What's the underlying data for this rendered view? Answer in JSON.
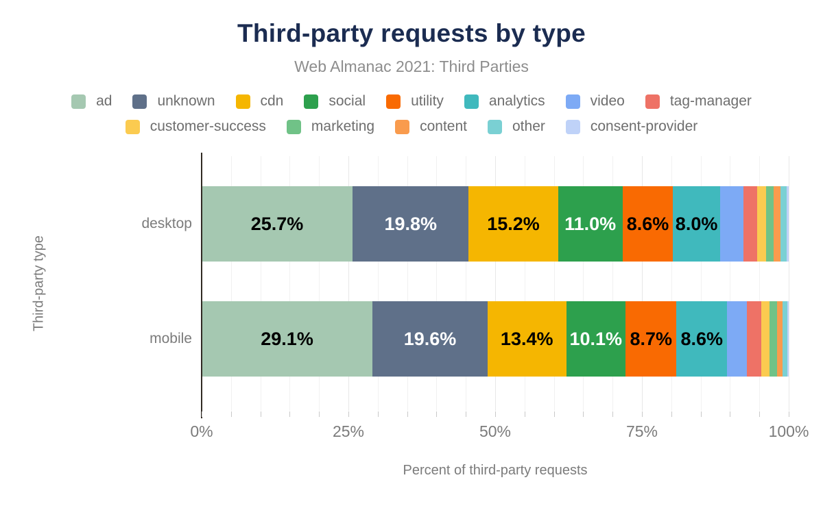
{
  "title": "Third-party requests by type",
  "subtitle": "Web Almanac 2021: Third Parties",
  "colors": {
    "title": "#1b2c51",
    "muted_text": "#7b7b7b",
    "axis_line": "#302a23",
    "gridline": "#f1f1f1"
  },
  "legend": {
    "rows": [
      [
        {
          "label": "ad",
          "color": "#a5c8b1"
        },
        {
          "label": "unknown",
          "color": "#5f7089"
        },
        {
          "label": "cdn",
          "color": "#f5b601"
        },
        {
          "label": "social",
          "color": "#2da04d"
        },
        {
          "label": "utility",
          "color": "#f96a02"
        },
        {
          "label": "analytics",
          "color": "#40b9bd"
        },
        {
          "label": "video",
          "color": "#7daaf5"
        },
        {
          "label": "tag-manager",
          "color": "#ee7266"
        }
      ],
      [
        {
          "label": "customer-success",
          "color": "#fbcb50"
        },
        {
          "label": "marketing",
          "color": "#70c287"
        },
        {
          "label": "content",
          "color": "#f99b4d"
        },
        {
          "label": "other",
          "color": "#7ad0d3"
        },
        {
          "label": "consent-provider",
          "color": "#bfd2f8"
        }
      ]
    ]
  },
  "chart_data": {
    "type": "bar",
    "orientation": "horizontal",
    "stacked": true,
    "title": "Third-party requests by type",
    "subtitle": "Web Almanac 2021: Third Parties",
    "xlabel": "Percent of third-party requests",
    "ylabel": "Third-party type",
    "xlim": [
      0,
      100
    ],
    "x_ticks": [
      "0%",
      "25%",
      "50%",
      "75%",
      "100%"
    ],
    "grid": "vertical-minor-5pct",
    "legend_position": "top",
    "data_label_threshold": 8,
    "categories": [
      "desktop",
      "mobile"
    ],
    "series": [
      {
        "name": "ad",
        "color": "#a5c8b1",
        "label_color": "#000000",
        "values": [
          25.7,
          29.1
        ]
      },
      {
        "name": "unknown",
        "color": "#5f7089",
        "label_color": "#ffffff",
        "values": [
          19.8,
          19.6
        ]
      },
      {
        "name": "cdn",
        "color": "#f5b601",
        "label_color": "#000000",
        "values": [
          15.2,
          13.4
        ]
      },
      {
        "name": "social",
        "color": "#2da04d",
        "label_color": "#ffffff",
        "values": [
          11.0,
          10.1
        ]
      },
      {
        "name": "utility",
        "color": "#f96a02",
        "label_color": "#000000",
        "values": [
          8.6,
          8.7
        ]
      },
      {
        "name": "analytics",
        "color": "#40b9bd",
        "label_color": "#000000",
        "values": [
          8.0,
          8.6
        ]
      },
      {
        "name": "video",
        "color": "#7daaf5",
        "label_color": "#000000",
        "values": [
          4.0,
          3.4
        ]
      },
      {
        "name": "tag-manager",
        "color": "#ee7266",
        "label_color": "#000000",
        "values": [
          2.3,
          2.4
        ]
      },
      {
        "name": "customer-success",
        "color": "#fbcb50",
        "label_color": "#000000",
        "values": [
          1.5,
          1.4
        ]
      },
      {
        "name": "marketing",
        "color": "#70c287",
        "label_color": "#000000",
        "values": [
          1.3,
          1.3
        ]
      },
      {
        "name": "content",
        "color": "#f99b4d",
        "label_color": "#000000",
        "values": [
          1.2,
          0.9
        ]
      },
      {
        "name": "other",
        "color": "#7ad0d3",
        "label_color": "#000000",
        "values": [
          1.1,
          0.9
        ]
      },
      {
        "name": "consent-provider",
        "color": "#bfd2f8",
        "label_color": "#000000",
        "values": [
          0.3,
          0.2
        ]
      }
    ],
    "shown_data_labels": {
      "desktop": [
        "25.7%",
        "19.8%",
        "15.2%",
        "11.0%",
        "8.6%",
        "8.0%"
      ],
      "mobile": [
        "29.1%",
        "19.6%",
        "13.4%",
        "10.1%",
        "8.7%",
        "8.6%"
      ]
    }
  }
}
